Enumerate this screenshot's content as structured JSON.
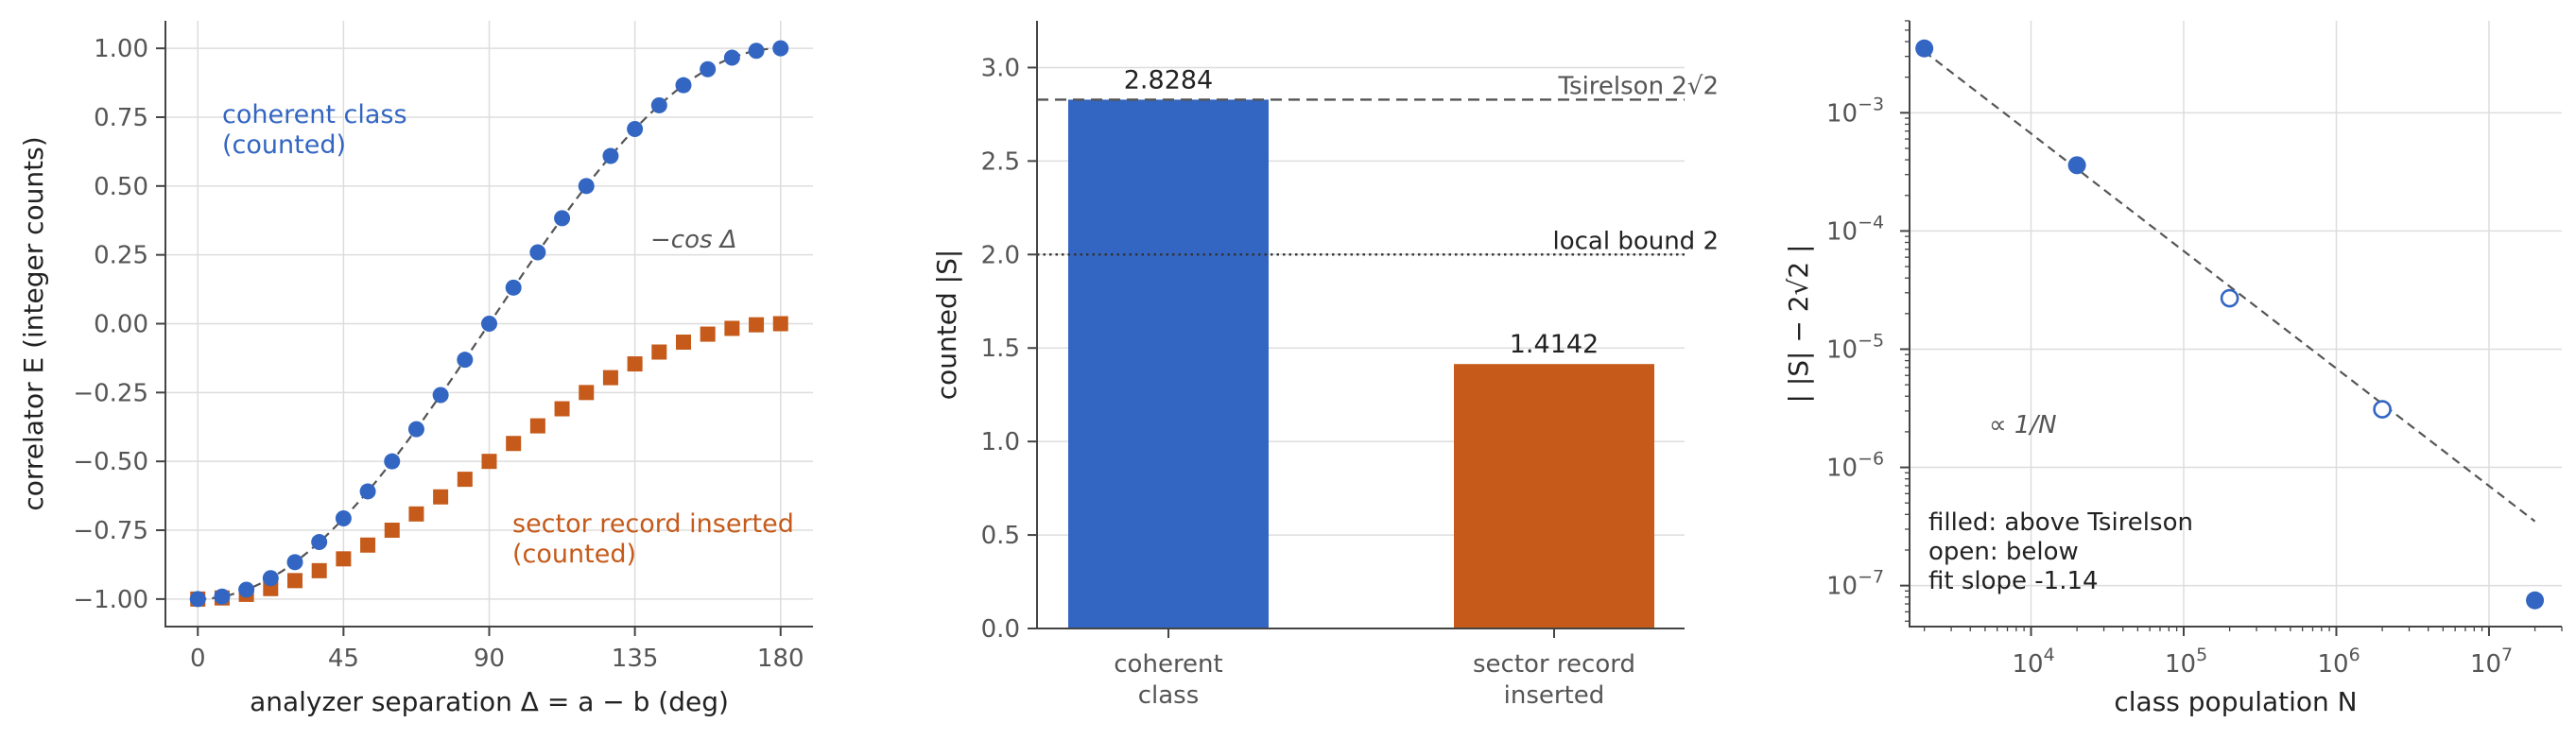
{
  "colors": {
    "blue": "#3366c2",
    "orange": "#c55a1a",
    "dash": "#555555",
    "grid": "#dddddd"
  },
  "chart_data": [
    {
      "type": "scatter",
      "xlabel": "analyzer separation Δ = a − b (deg)",
      "ylabel": "correlator E (integer counts)",
      "xlim": [
        -10,
        190
      ],
      "ylim": [
        -1.1,
        1.1
      ],
      "xticks": [
        0,
        45,
        90,
        135,
        180
      ],
      "yticks": [
        -1.0,
        -0.75,
        -0.5,
        -0.25,
        0.0,
        0.25,
        0.5,
        0.75,
        1.0
      ],
      "ytick_labels": [
        "−1.00",
        "−0.75",
        "−0.50",
        "−0.25",
        "0.00",
        "0.25",
        "0.50",
        "0.75",
        "1.00"
      ],
      "curve_label": "−cos Δ",
      "grid": true,
      "series": [
        {
          "name": "coherent class (counted)",
          "name_lines": [
            "coherent class",
            "(counted)"
          ],
          "marker": "circle",
          "x": [
            0,
            7.5,
            15,
            22.5,
            30,
            37.5,
            45,
            52.5,
            60,
            67.5,
            75,
            82.5,
            90,
            97.5,
            105,
            112.5,
            120,
            127.5,
            135,
            142.5,
            150,
            157.5,
            165,
            172.5,
            180
          ],
          "y": [
            -1.0,
            -0.991,
            -0.966,
            -0.924,
            -0.866,
            -0.793,
            -0.707,
            -0.609,
            -0.5,
            -0.383,
            -0.259,
            -0.131,
            0.0,
            0.131,
            0.259,
            0.383,
            0.5,
            0.609,
            0.707,
            0.793,
            0.866,
            0.924,
            0.966,
            0.991,
            1.0
          ]
        },
        {
          "name": "sector record inserted (counted)",
          "name_lines": [
            "sector record inserted",
            "(counted)"
          ],
          "marker": "square",
          "x": [
            0,
            7.5,
            15,
            22.5,
            30,
            37.5,
            45,
            52.5,
            60,
            67.5,
            75,
            82.5,
            90,
            97.5,
            105,
            112.5,
            120,
            127.5,
            135,
            142.5,
            150,
            157.5,
            165,
            172.5,
            180
          ],
          "y": [
            -1.0,
            -0.996,
            -0.983,
            -0.962,
            -0.933,
            -0.897,
            -0.854,
            -0.804,
            -0.75,
            -0.691,
            -0.629,
            -0.565,
            -0.5,
            -0.435,
            -0.371,
            -0.309,
            -0.25,
            -0.196,
            -0.146,
            -0.103,
            -0.067,
            -0.038,
            -0.017,
            -0.004,
            0.0
          ]
        }
      ]
    },
    {
      "type": "bar",
      "ylabel": "counted |S|",
      "ylim": [
        0,
        3.25
      ],
      "yticks": [
        0.0,
        0.5,
        1.0,
        1.5,
        2.0,
        2.5,
        3.0
      ],
      "ytick_labels": [
        "0.0",
        "0.5",
        "1.0",
        "1.5",
        "2.0",
        "2.5",
        "3.0"
      ],
      "categories": [
        [
          "coherent",
          "class"
        ],
        [
          "sector record",
          "inserted"
        ]
      ],
      "values": [
        2.8284,
        1.4142
      ],
      "value_labels": [
        "2.8284",
        "1.4142"
      ],
      "reference_lines": [
        {
          "value": 2.8284,
          "style": "dashed",
          "label": "Tsirelson 2√2"
        },
        {
          "value": 2.0,
          "style": "dotted",
          "label": "local bound 2"
        }
      ],
      "grid": true
    },
    {
      "type": "scatter",
      "xscale": "log",
      "yscale": "log",
      "xlabel": "class population N",
      "ylabel": "| |S| − 2√2 |",
      "xlim": [
        1600,
        30000000
      ],
      "ylim": [
        4.5e-08,
        0.006
      ],
      "xticks": [
        10000,
        100000,
        1000000,
        10000000
      ],
      "xtick_labels": [
        [
          "10",
          "4"
        ],
        [
          "10",
          "5"
        ],
        [
          "10",
          "6"
        ],
        [
          "10",
          "7"
        ]
      ],
      "yticks": [
        1e-07,
        1e-06,
        1e-05,
        0.0001,
        0.001
      ],
      "ytick_labels": [
        [
          "10",
          "−7"
        ],
        [
          "10",
          "−6"
        ],
        [
          "10",
          "−5"
        ],
        [
          "10",
          "−4"
        ],
        [
          "10",
          "−3"
        ]
      ],
      "fit_label": "∝ 1/N",
      "fit_slope": -1.14,
      "fit_line": {
        "x": [
          2000,
          20000000
        ],
        "y": [
          0.0033,
          3.5e-07
        ]
      },
      "annotation_lines": [
        "filled: above Tsirelson",
        "open: below",
        "fit slope -1.14"
      ],
      "grid": true,
      "points": [
        {
          "N": 2000,
          "dev": 0.0035,
          "above": true
        },
        {
          "N": 20000,
          "dev": 0.00036,
          "above": true
        },
        {
          "N": 200000,
          "dev": 2.7e-05,
          "above": false
        },
        {
          "N": 2000000,
          "dev": 3.1e-06,
          "above": false
        },
        {
          "N": 20000000,
          "dev": 7.5e-08,
          "above": true
        }
      ]
    }
  ]
}
